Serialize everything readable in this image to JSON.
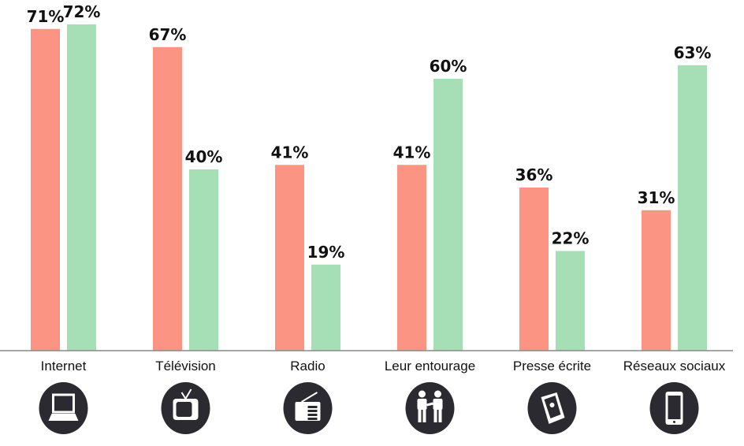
{
  "chart_data": {
    "type": "bar",
    "categories": [
      "Internet",
      "Télévision",
      "Radio",
      "Leur entourage",
      "Presse écrite",
      "Réseaux sociaux"
    ],
    "series": [
      {
        "values": [
          71,
          67,
          41,
          41,
          36,
          31
        ],
        "color": "#fb9483"
      },
      {
        "values": [
          72,
          40,
          19,
          60,
          22,
          63
        ],
        "color": "#a6dfb5"
      }
    ],
    "value_suffix": "%",
    "ylim": [
      0,
      75
    ],
    "grid": false,
    "icons": [
      "laptop-icon",
      "tv-icon",
      "radio-icon",
      "people-icon",
      "newspaper-icon",
      "smartphone-icon"
    ],
    "icon_color": "#2b2a30"
  }
}
